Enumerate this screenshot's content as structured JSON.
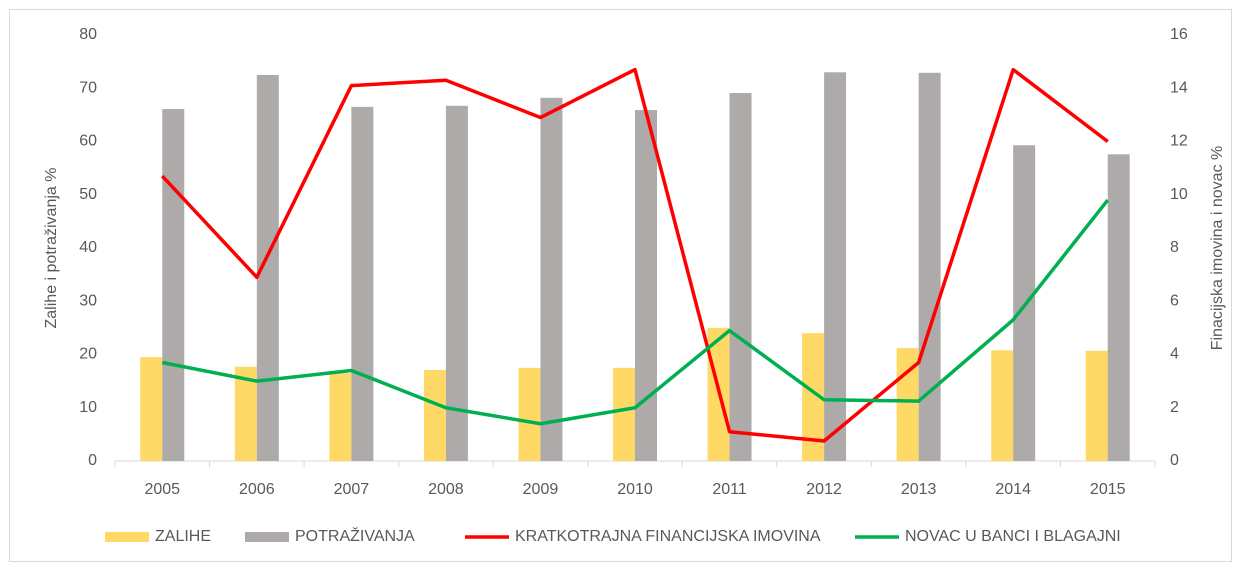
{
  "chart_data": {
    "type": "bar_line",
    "categories": [
      "2005",
      "2006",
      "2007",
      "2008",
      "2009",
      "2010",
      "2011",
      "2012",
      "2013",
      "2014",
      "2015"
    ],
    "y_label": "Zalihe i potraživanja %",
    "y2_label": "Finacijska imovina i novac %",
    "ylim": [
      0,
      80
    ],
    "yticks": [
      0,
      10,
      20,
      30,
      40,
      50,
      60,
      70,
      80
    ],
    "y2lim": [
      0,
      16
    ],
    "y2ticks": [
      0,
      2,
      4,
      6,
      8,
      10,
      12,
      14,
      16
    ],
    "legend": "bottom",
    "series": [
      {
        "name": "ZALIHE",
        "type": "bar",
        "color": "#ffd966",
        "values": [
          19.5,
          17.7,
          16.5,
          17.1,
          17.5,
          17.5,
          25,
          24,
          21.2,
          20.8,
          20.7
        ]
      },
      {
        "name": "POTRAŽIVANJA",
        "type": "bar",
        "color": "#aeaaaa",
        "values": [
          66.1,
          72.5,
          66.5,
          66.7,
          68.2,
          65.9,
          69.1,
          73,
          72.9,
          59.3,
          57.6
        ]
      },
      {
        "name": "KRATKOTRAJNA FINANCIJSKA IMOVINA",
        "type": "line",
        "axis": "y2",
        "color": "#ff0000",
        "values": [
          10.7,
          6.9,
          14.1,
          14.3,
          12.9,
          14.7,
          1.1,
          0.75,
          3.7,
          14.7,
          12
        ]
      },
      {
        "name": "NOVAC U BANCI I BLAGAJNI",
        "type": "line",
        "axis": "y2",
        "color": "#00b050",
        "values": [
          3.7,
          3.0,
          3.4,
          2.0,
          1.4,
          2.0,
          4.9,
          2.3,
          2.25,
          5.3,
          9.8
        ]
      }
    ]
  }
}
